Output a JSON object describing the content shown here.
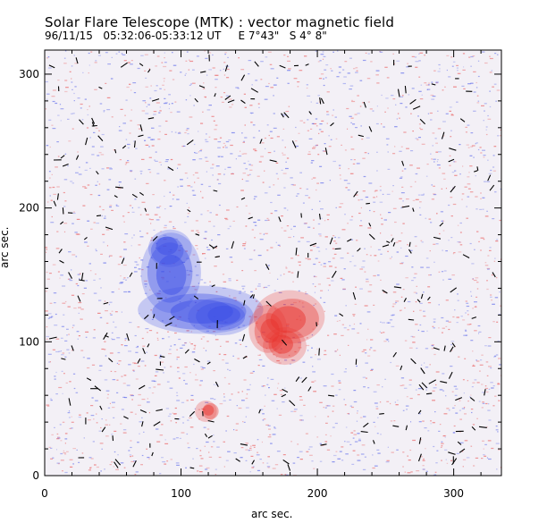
{
  "header": {
    "title": "Solar Flare Telescope (MTK) : vector magnetic field",
    "subtitle": "96/11/15   05:32:06-05:33:12 UT     E 7°43\"   S 4° 8\""
  },
  "chart_data": {
    "type": "heatmap",
    "xlabel": "arc sec.",
    "ylabel": "arc sec.",
    "xlim": [
      0,
      335
    ],
    "ylim": [
      0,
      318
    ],
    "x_ticks": [
      0,
      100,
      200,
      300
    ],
    "y_ticks": [
      0,
      100,
      200,
      300
    ],
    "colors": {
      "positive": "#e8352e",
      "negative": "#3d4fe6",
      "vectors": "#000000"
    },
    "regions": [
      {
        "polarity": "negative",
        "x": 120,
        "y": 125
      },
      {
        "polarity": "negative",
        "x": 90,
        "y": 160
      },
      {
        "polarity": "positive",
        "x": 180,
        "y": 118
      },
      {
        "polarity": "positive",
        "x": 120,
        "y": 50
      }
    ]
  }
}
